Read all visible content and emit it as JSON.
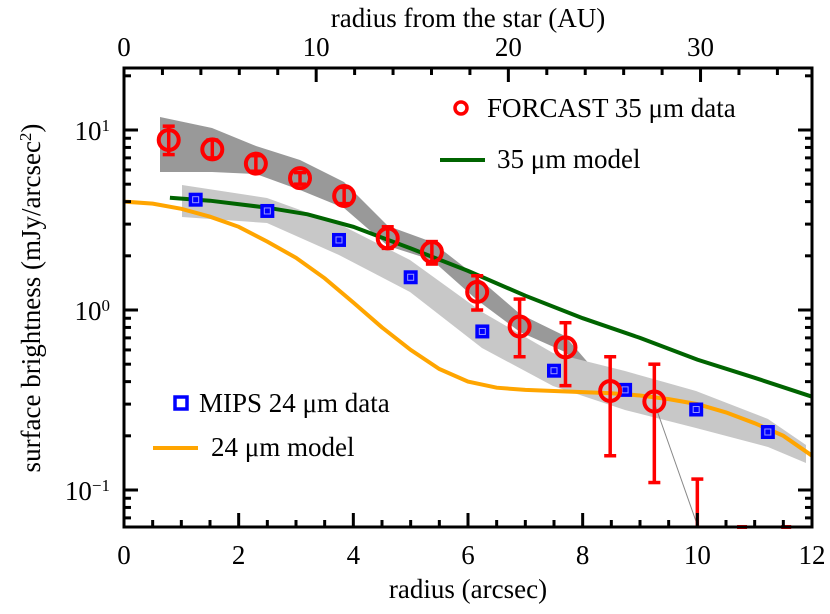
{
  "chart_data": {
    "type": "scatter",
    "title": "",
    "xlabel": "radius (arcsec)",
    "ylabel": "surface brightness (mJy/arcsec²)",
    "x2label": "radius from the star (AU)",
    "xlim": [
      0,
      12
    ],
    "ylim": [
      0.062,
      22
    ],
    "yscale": "log",
    "x_ticks": [
      "0",
      "2",
      "4",
      "6",
      "8",
      "10",
      "12"
    ],
    "x2_ticks": [
      "0",
      "10",
      "20",
      "30"
    ],
    "y_ticks": [
      "10^1",
      "10^0",
      "10^-1"
    ],
    "grid": false,
    "legend": [
      {
        "label": "FORCAST 35 μm data",
        "marker": "circle",
        "color": "#ff0000"
      },
      {
        "label": "35 μm model",
        "marker": "line",
        "color": "#006400"
      },
      {
        "label": "MIPS 24 μm data",
        "marker": "square",
        "color": "#0000ff"
      },
      {
        "label": "24 μm model",
        "marker": "line",
        "color": "#ffa500"
      }
    ],
    "series": [
      {
        "name": "FORCAST 35 μm data",
        "color": "#ff0000",
        "x": [
          0.78,
          1.54,
          2.3,
          3.07,
          3.84,
          4.6,
          5.37,
          6.16,
          6.9,
          7.7,
          8.48,
          9.25,
          10.0
        ],
        "y": [
          8.8,
          7.8,
          6.5,
          5.4,
          4.3,
          2.5,
          2.1,
          1.26,
          0.81,
          0.62,
          0.355,
          0.31,
          0.06
        ],
        "err_hi": [
          10.5,
          8.8,
          7.2,
          5.8,
          4.8,
          2.9,
          2.4,
          1.55,
          1.15,
          0.85,
          0.55,
          0.5,
          0.115
        ],
        "err_lo": [
          7.3,
          7.0,
          5.9,
          5.0,
          3.9,
          2.2,
          1.8,
          1.0,
          0.55,
          0.38,
          0.155,
          0.11,
          0.06
        ]
      },
      {
        "name": "MIPS 24 μm data",
        "color": "#0000ff",
        "x": [
          1.25,
          2.5,
          3.75,
          5.0,
          6.25,
          7.5,
          8.74,
          9.98,
          11.23
        ],
        "y": [
          4.1,
          3.55,
          2.45,
          1.52,
          0.76,
          0.46,
          0.36,
          0.28,
          0.21
        ]
      },
      {
        "name": "35 μm model",
        "color": "#006400",
        "x": [
          0.8,
          1.5,
          2.5,
          3.2,
          4.0,
          5.0,
          6.0,
          7.0,
          8.0,
          9.0,
          10.0,
          11.0,
          12.0
        ],
        "y": [
          4.2,
          4.05,
          3.7,
          3.4,
          2.9,
          2.2,
          1.65,
          1.2,
          0.9,
          0.7,
          0.53,
          0.42,
          0.33
        ]
      },
      {
        "name": "24 μm model",
        "color": "#ffa500",
        "x": [
          0.0,
          0.5,
          1.0,
          1.5,
          2.0,
          2.5,
          3.0,
          3.5,
          4.0,
          4.5,
          5.0,
          5.5,
          6.0,
          6.5,
          7.0,
          7.5,
          8.0,
          8.5,
          9.0,
          9.5,
          10.0,
          10.5,
          11.0,
          11.5,
          12.0
        ],
        "y": [
          4.0,
          3.9,
          3.65,
          3.3,
          2.9,
          2.4,
          1.95,
          1.5,
          1.1,
          0.8,
          0.6,
          0.47,
          0.4,
          0.37,
          0.36,
          0.355,
          0.35,
          0.345,
          0.335,
          0.32,
          0.3,
          0.27,
          0.235,
          0.2,
          0.155
        ]
      }
    ]
  },
  "labels": {
    "xlabel": "radius (arcsec)",
    "x2label": "radius from the star (AU)",
    "ylabel_main": "surface brightness (mJy/arcsec",
    "ylabel_sup": "2",
    "ylabel_close": ")",
    "legend_forcast": "FORCAST 35 μm data",
    "legend_35model": "35 μm model",
    "legend_mips": "MIPS 24 μm data",
    "legend_24model": "24 μm model",
    "xticks": [
      "0",
      "2",
      "4",
      "6",
      "8",
      "10",
      "12"
    ],
    "x2ticks": [
      "0",
      "10",
      "20",
      "30"
    ],
    "ytick_base": "10",
    "ytick_exp": [
      "1",
      "0",
      "−1"
    ]
  }
}
